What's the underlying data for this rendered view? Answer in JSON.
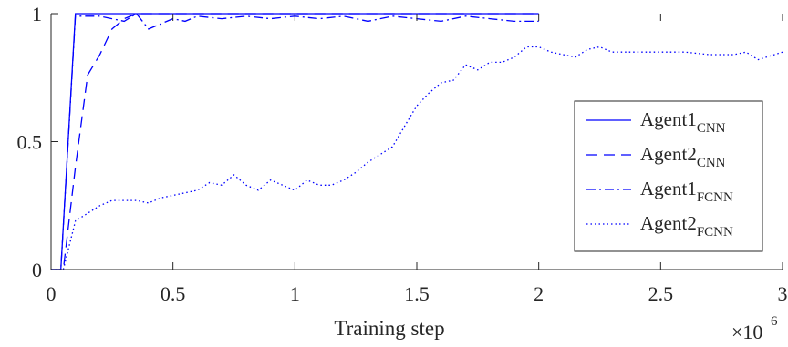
{
  "chart_data": {
    "type": "line",
    "title": "",
    "xlabel": "Training step",
    "ylabel": "",
    "x_multiplier": "×10",
    "x_multiplier_exp": "6",
    "xlim": [
      0,
      3
    ],
    "ylim": [
      0,
      1
    ],
    "x_ticks": [
      "0",
      "0.5",
      "1",
      "1.5",
      "2",
      "2.5",
      "3"
    ],
    "y_ticks": [
      "0",
      "0.5",
      "1"
    ],
    "legend_position": "right",
    "line_color": "#0000ff",
    "series": [
      {
        "name": "Agent1",
        "name_sub": "CNN",
        "style": "solid",
        "points": [
          [
            0,
            0
          ],
          [
            0.04,
            0
          ],
          [
            0.1,
            1
          ],
          [
            0.2,
            1
          ],
          [
            2.0,
            1
          ]
        ]
      },
      {
        "name": "Agent2",
        "name_sub": "CNN",
        "style": "dashed",
        "points": [
          [
            0,
            0
          ],
          [
            0.05,
            0
          ],
          [
            0.1,
            0.4
          ],
          [
            0.15,
            0.76
          ],
          [
            0.2,
            0.84
          ],
          [
            0.25,
            0.94
          ],
          [
            0.3,
            0.98
          ],
          [
            0.35,
            1
          ],
          [
            2.0,
            1
          ]
        ]
      },
      {
        "name": "Agent1",
        "name_sub": "FCNN",
        "style": "dashdot",
        "points": [
          [
            0,
            0
          ],
          [
            0.04,
            0
          ],
          [
            0.1,
            0.99
          ],
          [
            0.2,
            0.99
          ],
          [
            0.25,
            0.98
          ],
          [
            0.3,
            0.97
          ],
          [
            0.35,
            1.0
          ],
          [
            0.4,
            0.94
          ],
          [
            0.45,
            0.96
          ],
          [
            0.5,
            0.98
          ],
          [
            0.55,
            0.97
          ],
          [
            0.6,
            0.99
          ],
          [
            0.7,
            0.98
          ],
          [
            0.8,
            0.99
          ],
          [
            0.9,
            0.98
          ],
          [
            1.0,
            0.99
          ],
          [
            1.1,
            0.98
          ],
          [
            1.2,
            0.99
          ],
          [
            1.3,
            0.97
          ],
          [
            1.4,
            0.99
          ],
          [
            1.5,
            0.98
          ],
          [
            1.6,
            0.97
          ],
          [
            1.7,
            0.99
          ],
          [
            1.8,
            0.98
          ],
          [
            1.9,
            0.97
          ],
          [
            2.0,
            0.97
          ]
        ]
      },
      {
        "name": "Agent2",
        "name_sub": "FCNN",
        "style": "dotted",
        "points": [
          [
            0,
            0
          ],
          [
            0.05,
            0
          ],
          [
            0.1,
            0.19
          ],
          [
            0.15,
            0.22
          ],
          [
            0.2,
            0.25
          ],
          [
            0.25,
            0.27
          ],
          [
            0.3,
            0.27
          ],
          [
            0.35,
            0.27
          ],
          [
            0.4,
            0.26
          ],
          [
            0.45,
            0.28
          ],
          [
            0.5,
            0.29
          ],
          [
            0.55,
            0.3
          ],
          [
            0.6,
            0.31
          ],
          [
            0.65,
            0.34
          ],
          [
            0.7,
            0.33
          ],
          [
            0.75,
            0.37
          ],
          [
            0.8,
            0.33
          ],
          [
            0.85,
            0.31
          ],
          [
            0.9,
            0.35
          ],
          [
            0.95,
            0.33
          ],
          [
            1.0,
            0.31
          ],
          [
            1.05,
            0.35
          ],
          [
            1.1,
            0.33
          ],
          [
            1.15,
            0.33
          ],
          [
            1.2,
            0.35
          ],
          [
            1.25,
            0.38
          ],
          [
            1.3,
            0.42
          ],
          [
            1.35,
            0.45
          ],
          [
            1.4,
            0.48
          ],
          [
            1.45,
            0.56
          ],
          [
            1.5,
            0.64
          ],
          [
            1.55,
            0.69
          ],
          [
            1.6,
            0.73
          ],
          [
            1.65,
            0.74
          ],
          [
            1.7,
            0.8
          ],
          [
            1.75,
            0.78
          ],
          [
            1.8,
            0.81
          ],
          [
            1.85,
            0.81
          ],
          [
            1.9,
            0.83
          ],
          [
            1.95,
            0.87
          ],
          [
            2.0,
            0.87
          ],
          [
            2.05,
            0.85
          ],
          [
            2.1,
            0.84
          ],
          [
            2.15,
            0.83
          ],
          [
            2.2,
            0.86
          ],
          [
            2.25,
            0.87
          ],
          [
            2.3,
            0.85
          ],
          [
            2.4,
            0.85
          ],
          [
            2.5,
            0.85
          ],
          [
            2.6,
            0.85
          ],
          [
            2.7,
            0.84
          ],
          [
            2.8,
            0.84
          ],
          [
            2.85,
            0.85
          ],
          [
            2.9,
            0.82
          ],
          [
            3.0,
            0.85
          ]
        ]
      }
    ]
  }
}
